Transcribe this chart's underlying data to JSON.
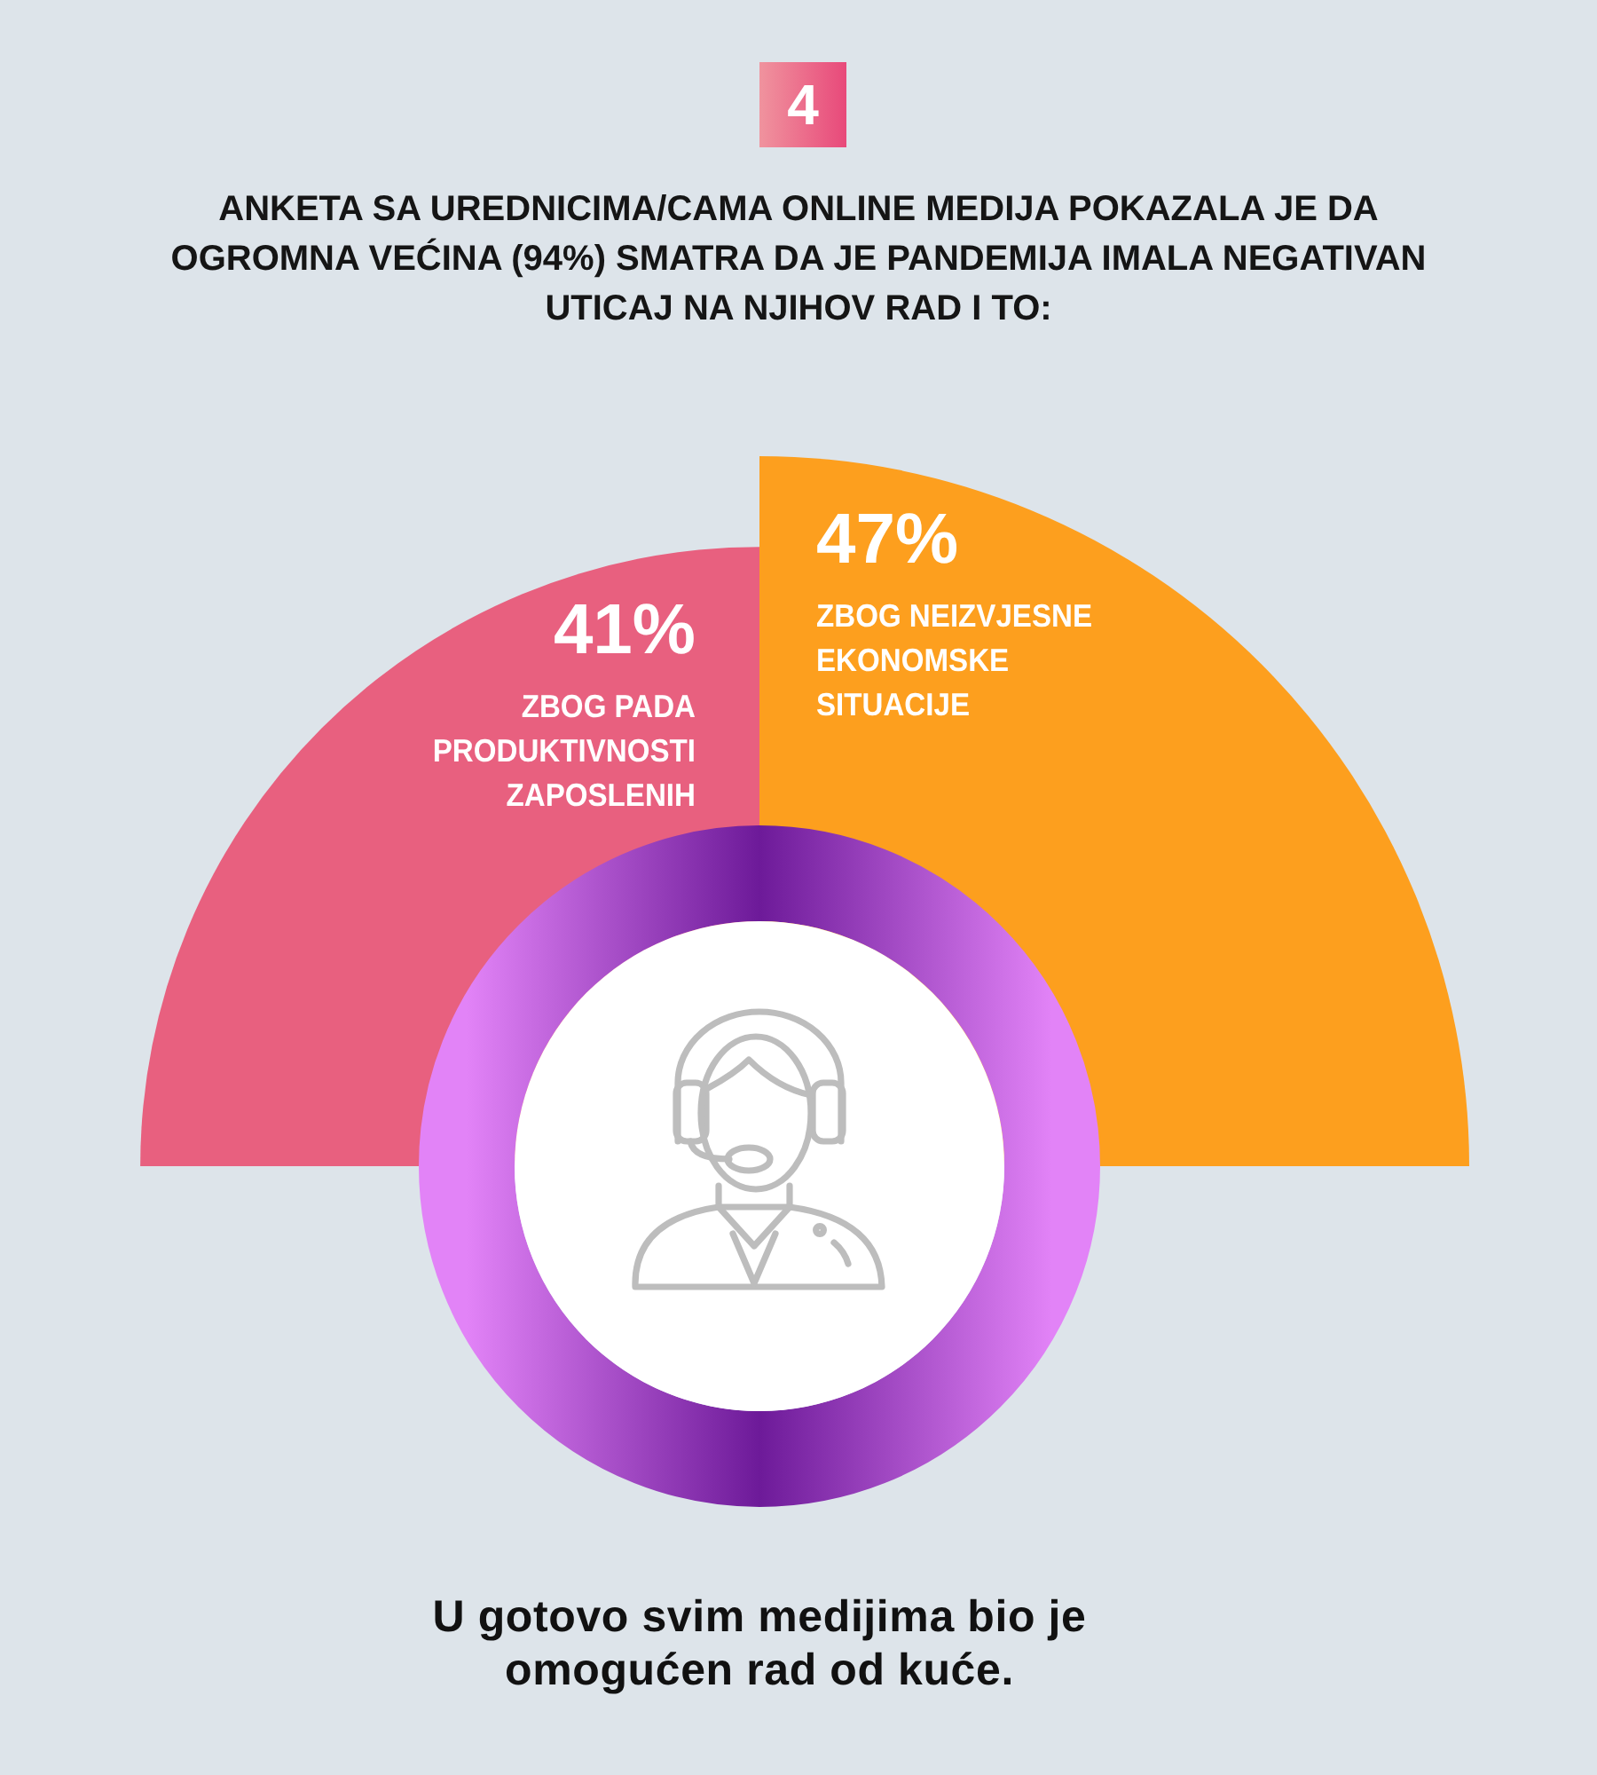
{
  "chart_data": {
    "type": "other",
    "title": "ANKETA SA UREDNICIMA/CAMA ONLINE MEDIJA POKAZALA JE DA OGROMNA VEĆINA (94%) SMATRA DA JE PANDEMIJA IMALA NEGATIVAN UTICAJ NA NJIHOV RAD I TO:",
    "categories": [
      "ZBOG PADA PRODUKTIVNOSTI ZAPOSLENIH",
      "ZBOG NEIZVJESNE EKONOMSKE SITUACIJE"
    ],
    "values": [
      41,
      47
    ],
    "colors": [
      "#e8607f",
      "#fd9f1e"
    ],
    "value_labels": [
      "41%",
      "47%"
    ],
    "annotations": [
      "4",
      "U gotovo svim medijima bio je omogućen rad od kuće."
    ]
  }
}
